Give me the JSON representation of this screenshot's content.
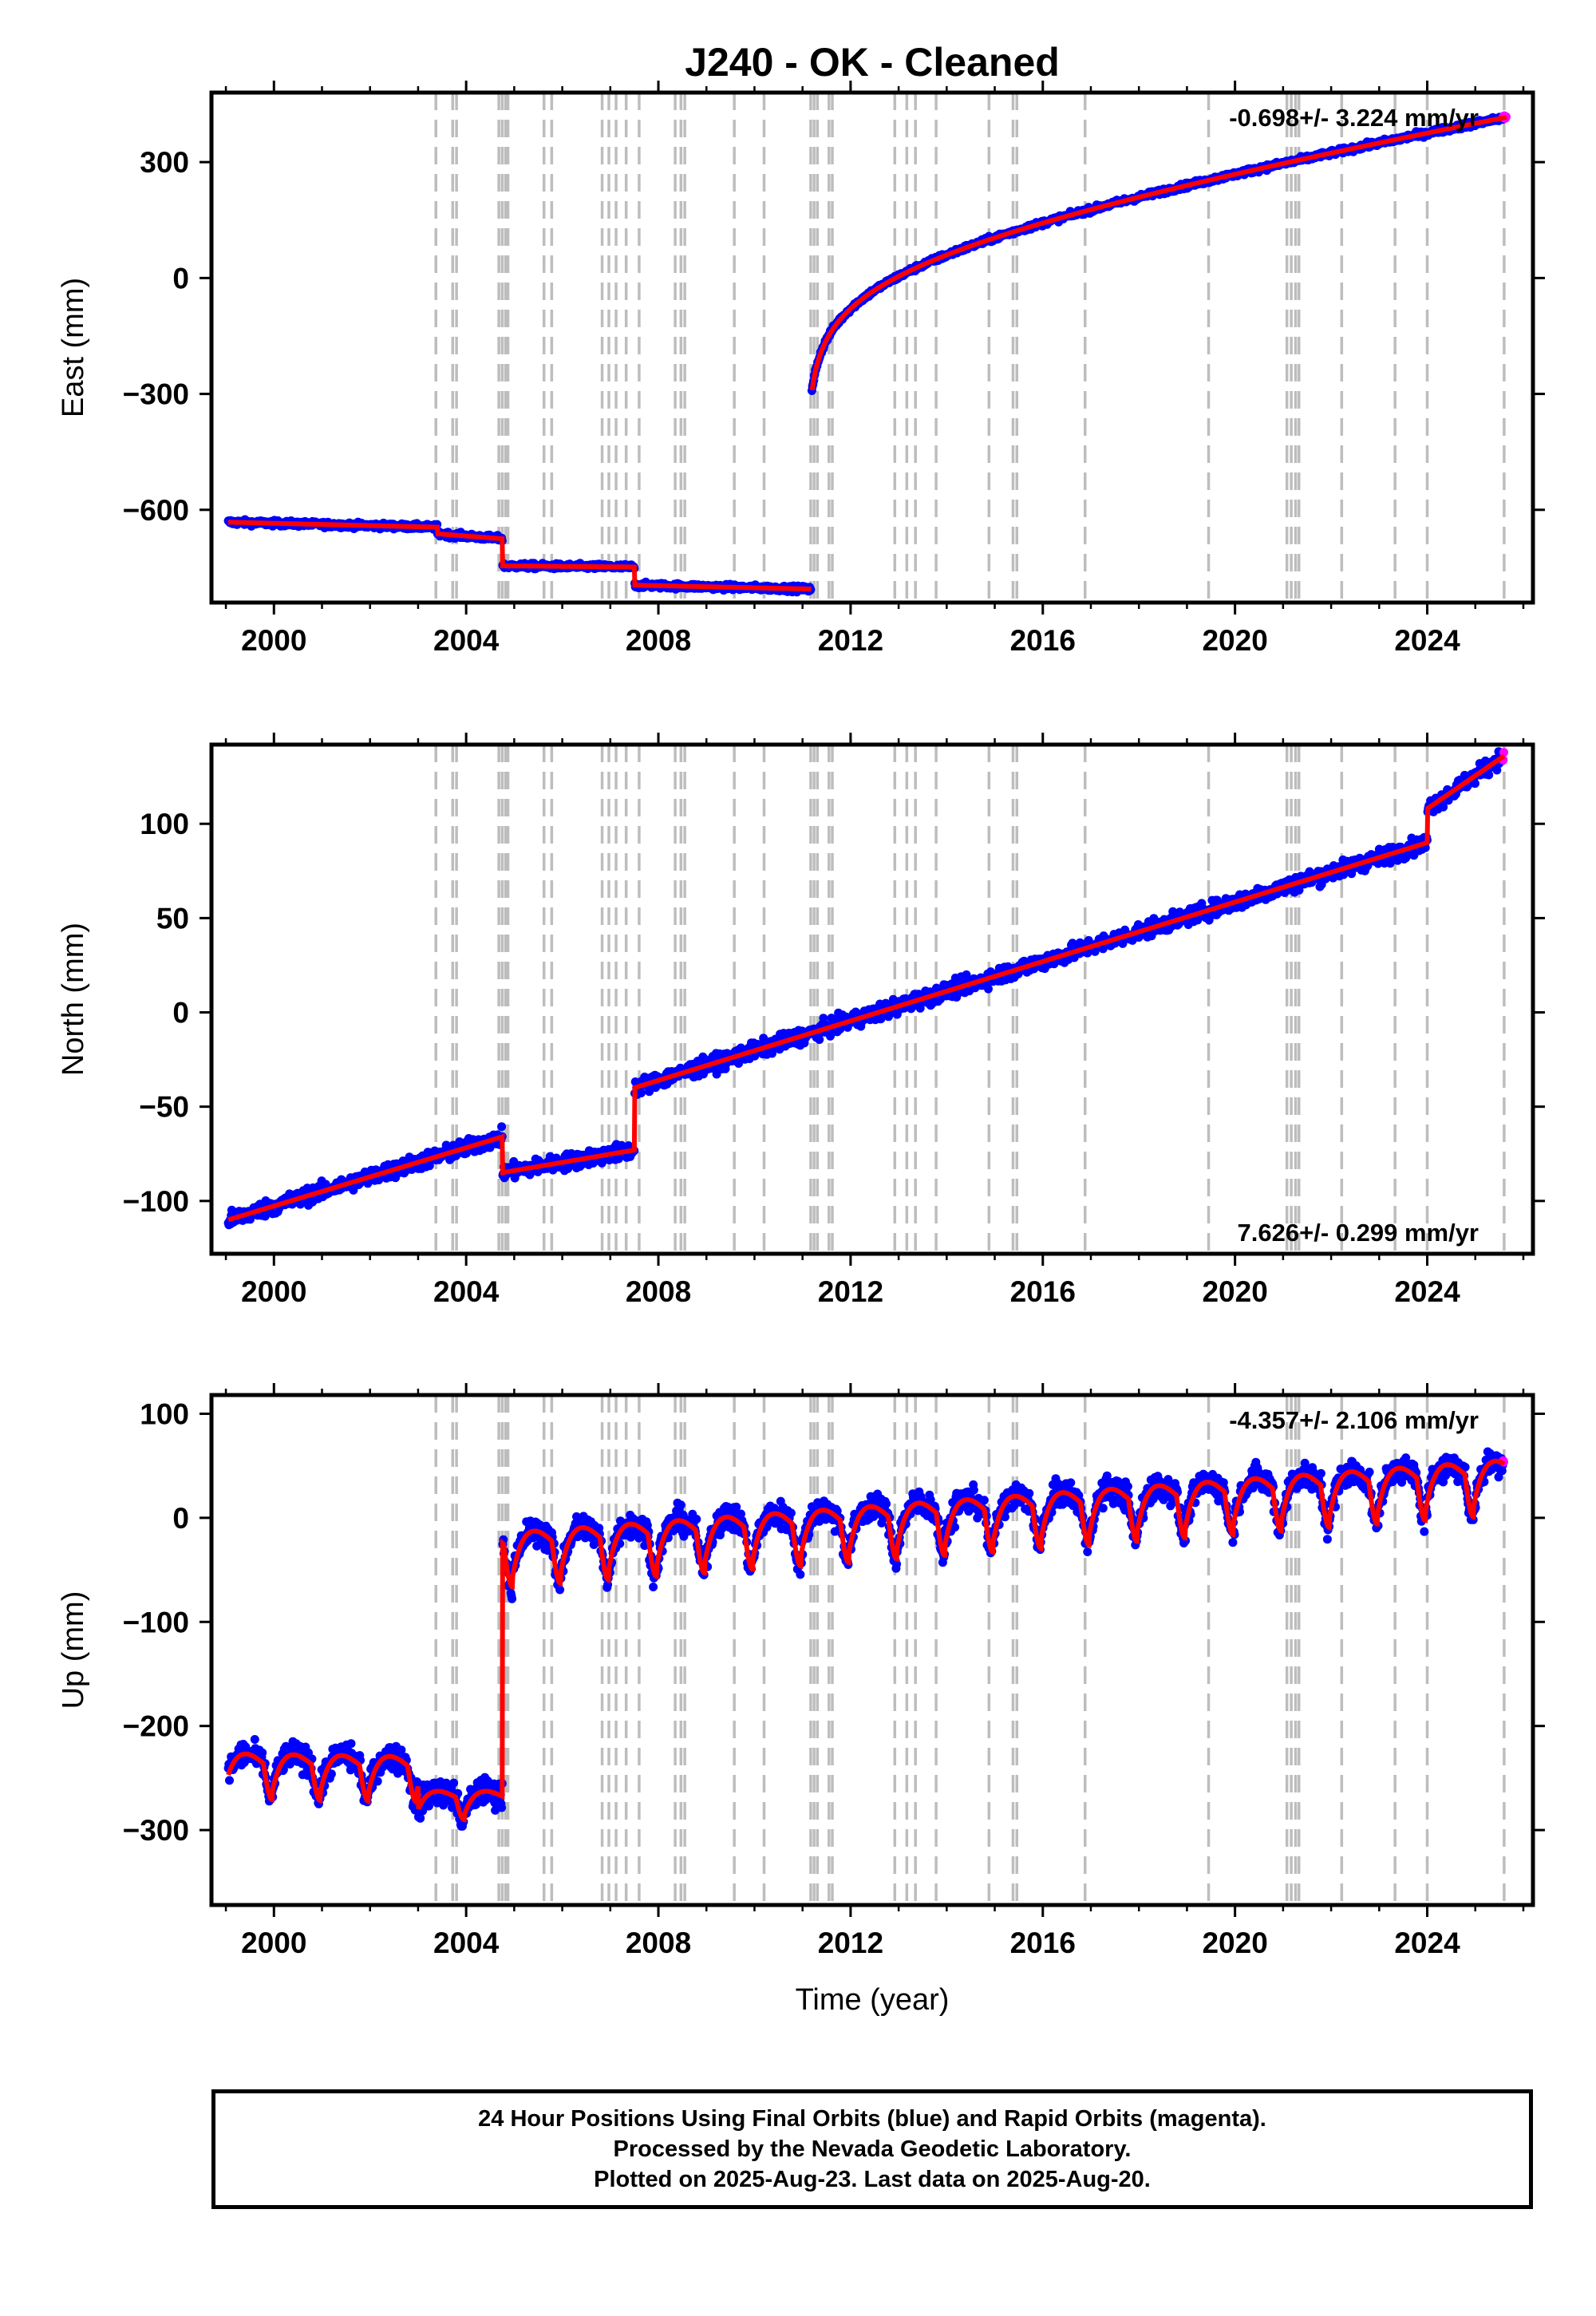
{
  "title": "J240  - OK - Cleaned",
  "xlabel": "Time (year)",
  "footer": [
    "24 Hour Positions Using Final Orbits (blue) and Rapid Orbits (magenta).",
    "Processed by the Nevada Geodetic Laboratory.",
    "Plotted on 2025-Aug-23. Last data on 2025-Aug-20."
  ],
  "colors": {
    "final": "#0000ff",
    "rapid": "#ff00ff",
    "model": "#ff0000",
    "event_lines": "#bdbdbd"
  },
  "chart_data": [
    {
      "type": "scatter",
      "name": "east",
      "ylabel": "East (mm)",
      "rate_label": "-0.698+/- 3.224 mm/yr",
      "rate_position": "top-right",
      "xlim": [
        1998.7,
        2026.2
      ],
      "ylim": [
        -840,
        480
      ],
      "xticks": [
        2000,
        2004,
        2008,
        2012,
        2016,
        2020,
        2024
      ],
      "yticks": [
        -600,
        -300,
        0,
        300
      ],
      "ytick_labels": [
        "−600",
        "−300",
        "0",
        "300"
      ],
      "segments": [
        {
          "x0": 1999.05,
          "x1": 2003.4,
          "y0": -632,
          "y1": -645
        },
        {
          "x0": 2003.4,
          "x1": 2004.75,
          "y0": -662,
          "y1": -675
        },
        {
          "x0": 2004.75,
          "x1": 2007.5,
          "y0": -745,
          "y1": -748
        },
        {
          "x0": 2007.5,
          "x1": 2011.18,
          "y0": -795,
          "y1": -805
        }
      ],
      "postseismic": {
        "t0": 2011.19,
        "x1": 2025.6,
        "y0": -300,
        "amp": 150,
        "tau": 0.5,
        "rate": 32.2,
        "end": 415
      },
      "amp_noise": 5
    },
    {
      "type": "scatter",
      "name": "north",
      "ylabel": "North (mm)",
      "rate_label": "7.626+/- 0.299 mm/yr",
      "rate_position": "bottom-right",
      "xlim": [
        1998.7,
        2026.2
      ],
      "ylim": [
        -128,
        142
      ],
      "xticks": [
        2000,
        2004,
        2008,
        2012,
        2016,
        2020,
        2024
      ],
      "yticks": [
        -100,
        -50,
        0,
        50,
        100
      ],
      "ytick_labels": [
        "−100",
        "−50",
        "0",
        "50",
        "100"
      ],
      "segments": [
        {
          "x0": 1999.05,
          "x1": 2004.75,
          "y0": -110,
          "y1": -66
        },
        {
          "x0": 2004.75,
          "x1": 2007.5,
          "y0": -85,
          "y1": -73
        },
        {
          "x0": 2007.5,
          "x1": 2024.0,
          "y0": -40,
          "y1": 90
        },
        {
          "x0": 2024.0,
          "x1": 2025.6,
          "y0": 108,
          "y1": 136
        }
      ],
      "amp_noise": 3
    },
    {
      "type": "scatter",
      "name": "up",
      "ylabel": "Up (mm)",
      "rate_label": "-4.357+/- 2.106 mm/yr",
      "rate_position": "top-right",
      "xlim": [
        1998.7,
        2026.2
      ],
      "ylim": [
        -372,
        118
      ],
      "xticks": [
        2000,
        2004,
        2008,
        2012,
        2016,
        2020,
        2024
      ],
      "yticks": [
        -300,
        -200,
        -100,
        0,
        100
      ],
      "ytick_labels": [
        "−300",
        "−200",
        "−100",
        "0",
        "100"
      ],
      "segments": [
        {
          "x0": 1999.05,
          "x1": 2003.0,
          "y0": -235,
          "y1": -238,
          "seasonal": 35,
          "phase": 0.78
        },
        {
          "x0": 2003.0,
          "x1": 2004.75,
          "y0": -268,
          "y1": -268,
          "seasonal": 22,
          "phase": 0.78
        },
        {
          "x0": 2004.75,
          "x1": 2025.6,
          "y0": -25,
          "y1": 45,
          "seasonal": 42,
          "phase": 0.78
        }
      ],
      "amp_noise": 9
    }
  ],
  "event_years": [
    2003.37,
    2003.72,
    2003.8,
    2004.68,
    2004.75,
    2004.82,
    2004.87,
    2005.62,
    2005.78,
    2006.83,
    2006.97,
    2007.12,
    2007.33,
    2007.6,
    2008.35,
    2008.47,
    2008.55,
    2009.58,
    2010.2,
    2011.17,
    2011.24,
    2011.31,
    2011.55,
    2011.62,
    2012.92,
    2013.17,
    2013.35,
    2013.78,
    2014.88,
    2015.38,
    2015.46,
    2016.88,
    2019.45,
    2021.08,
    2021.17,
    2021.26,
    2021.33,
    2022.22,
    2023.33,
    2024.0,
    2025.6
  ],
  "rapid_start": 2025.6
}
